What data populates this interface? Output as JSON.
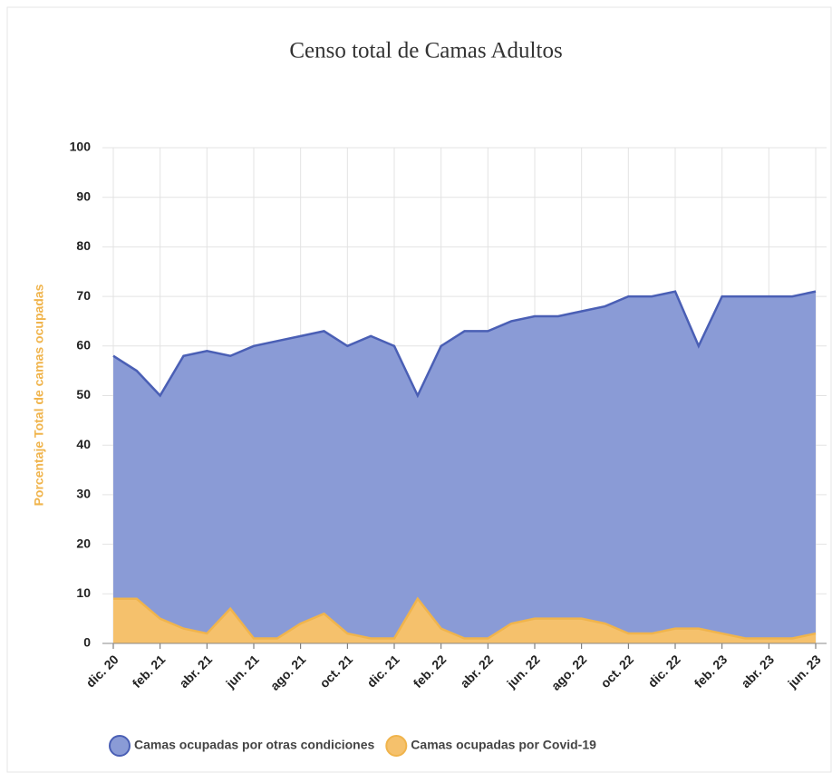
{
  "chart_data": {
    "type": "area",
    "title": "Censo total de Camas Adultos",
    "y_label": "Porcentaje Total de camas ocupadas",
    "categories": [
      "dic. 20",
      null,
      "feb. 21",
      null,
      "abr. 21",
      null,
      "jun. 21",
      null,
      "ago. 21",
      null,
      "oct. 21",
      null,
      "dic. 21",
      null,
      "feb. 22",
      null,
      "abr. 22",
      null,
      "jun. 22",
      null,
      "ago. 22",
      null,
      "oct. 22",
      null,
      "dic. 22",
      null,
      "feb. 23",
      null,
      "abr. 23",
      null,
      "jun. 23"
    ],
    "series": [
      {
        "name": "Camas ocupadas por otras condiciones",
        "color": "#4a5fb5",
        "fill": "#8a9bd6",
        "values": [
          58,
          55,
          50,
          58,
          59,
          58,
          60,
          61,
          62,
          63,
          60,
          62,
          60,
          50,
          60,
          63,
          63,
          65,
          66,
          66,
          67,
          68,
          70,
          70,
          71,
          60,
          70,
          70,
          70,
          70,
          71
        ]
      },
      {
        "name": "Camas ocupadas por Covid-19",
        "color": "#f0b44c",
        "fill": "#f5c16c",
        "values": [
          9,
          9,
          5,
          3,
          2,
          7,
          1,
          1,
          4,
          6,
          2,
          1,
          1,
          9,
          3,
          1,
          1,
          4,
          5,
          5,
          5,
          4,
          2,
          2,
          3,
          3,
          2,
          1,
          1,
          1,
          2
        ]
      }
    ],
    "ylim": [
      0,
      100
    ],
    "yticks": [
      0,
      10,
      20,
      30,
      40,
      50,
      60,
      70,
      80,
      90,
      100
    ],
    "grid": true
  }
}
